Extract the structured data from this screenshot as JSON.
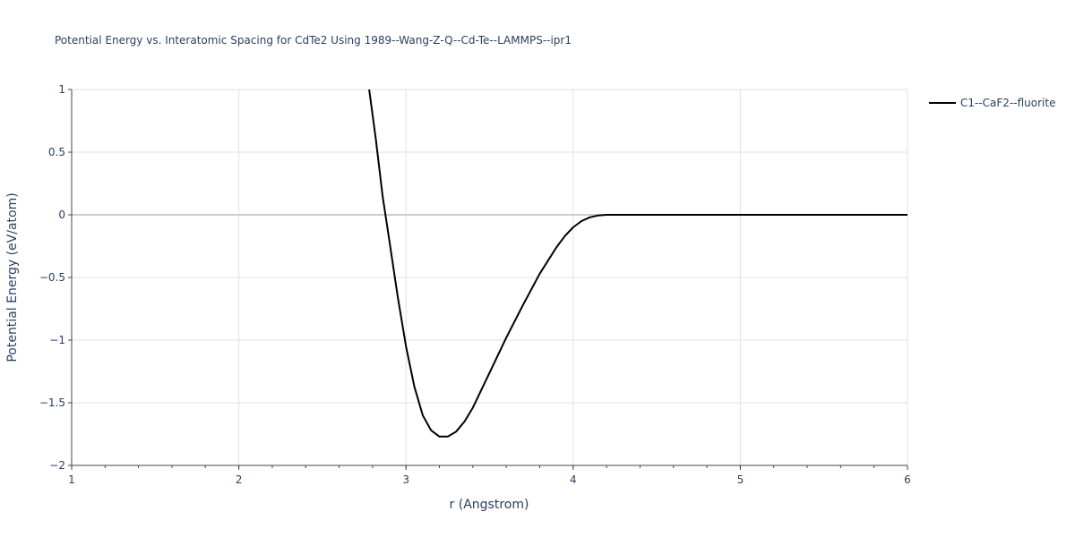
{
  "chart_data": {
    "type": "line",
    "title": "Potential Energy vs. Interatomic Spacing for CdTe2 Using 1989--Wang-Z-Q--Cd-Te--LAMMPS--ipr1",
    "xlabel": "r (Angstrom)",
    "ylabel": "Potential Energy (eV/atom)",
    "xlim": [
      1,
      6
    ],
    "ylim": [
      -2,
      1
    ],
    "xticks": [
      1,
      2,
      3,
      4,
      5,
      6
    ],
    "xtick_labels": [
      "1",
      "2",
      "3",
      "4",
      "5",
      "6"
    ],
    "yticks": [
      1,
      0.5,
      0,
      -0.5,
      -1,
      -1.5,
      -2
    ],
    "ytick_labels": [
      "1",
      "0.5",
      "0",
      "−0.5",
      "−1",
      "−1.5",
      "−2"
    ],
    "grid": true,
    "legend_position": "top-right",
    "series": [
      {
        "name": "C1--CaF2--fluorite",
        "color": "#000000",
        "x": [
          2.78,
          2.82,
          2.86,
          2.9,
          2.95,
          3.0,
          3.05,
          3.1,
          3.15,
          3.2,
          3.25,
          3.3,
          3.35,
          3.4,
          3.5,
          3.6,
          3.7,
          3.8,
          3.9,
          3.95,
          4.0,
          4.05,
          4.1,
          4.15,
          4.2,
          4.25,
          4.3,
          4.5,
          5.0,
          5.5,
          6.0
        ],
        "y": [
          1.0,
          0.6,
          0.15,
          -0.2,
          -0.65,
          -1.05,
          -1.37,
          -1.6,
          -1.72,
          -1.77,
          -1.77,
          -1.73,
          -1.65,
          -1.54,
          -1.26,
          -0.98,
          -0.72,
          -0.47,
          -0.26,
          -0.17,
          -0.1,
          -0.05,
          -0.02,
          -0.005,
          0.0,
          0.0,
          0.0,
          0.0,
          0.0,
          0.0,
          0.0
        ]
      }
    ]
  }
}
